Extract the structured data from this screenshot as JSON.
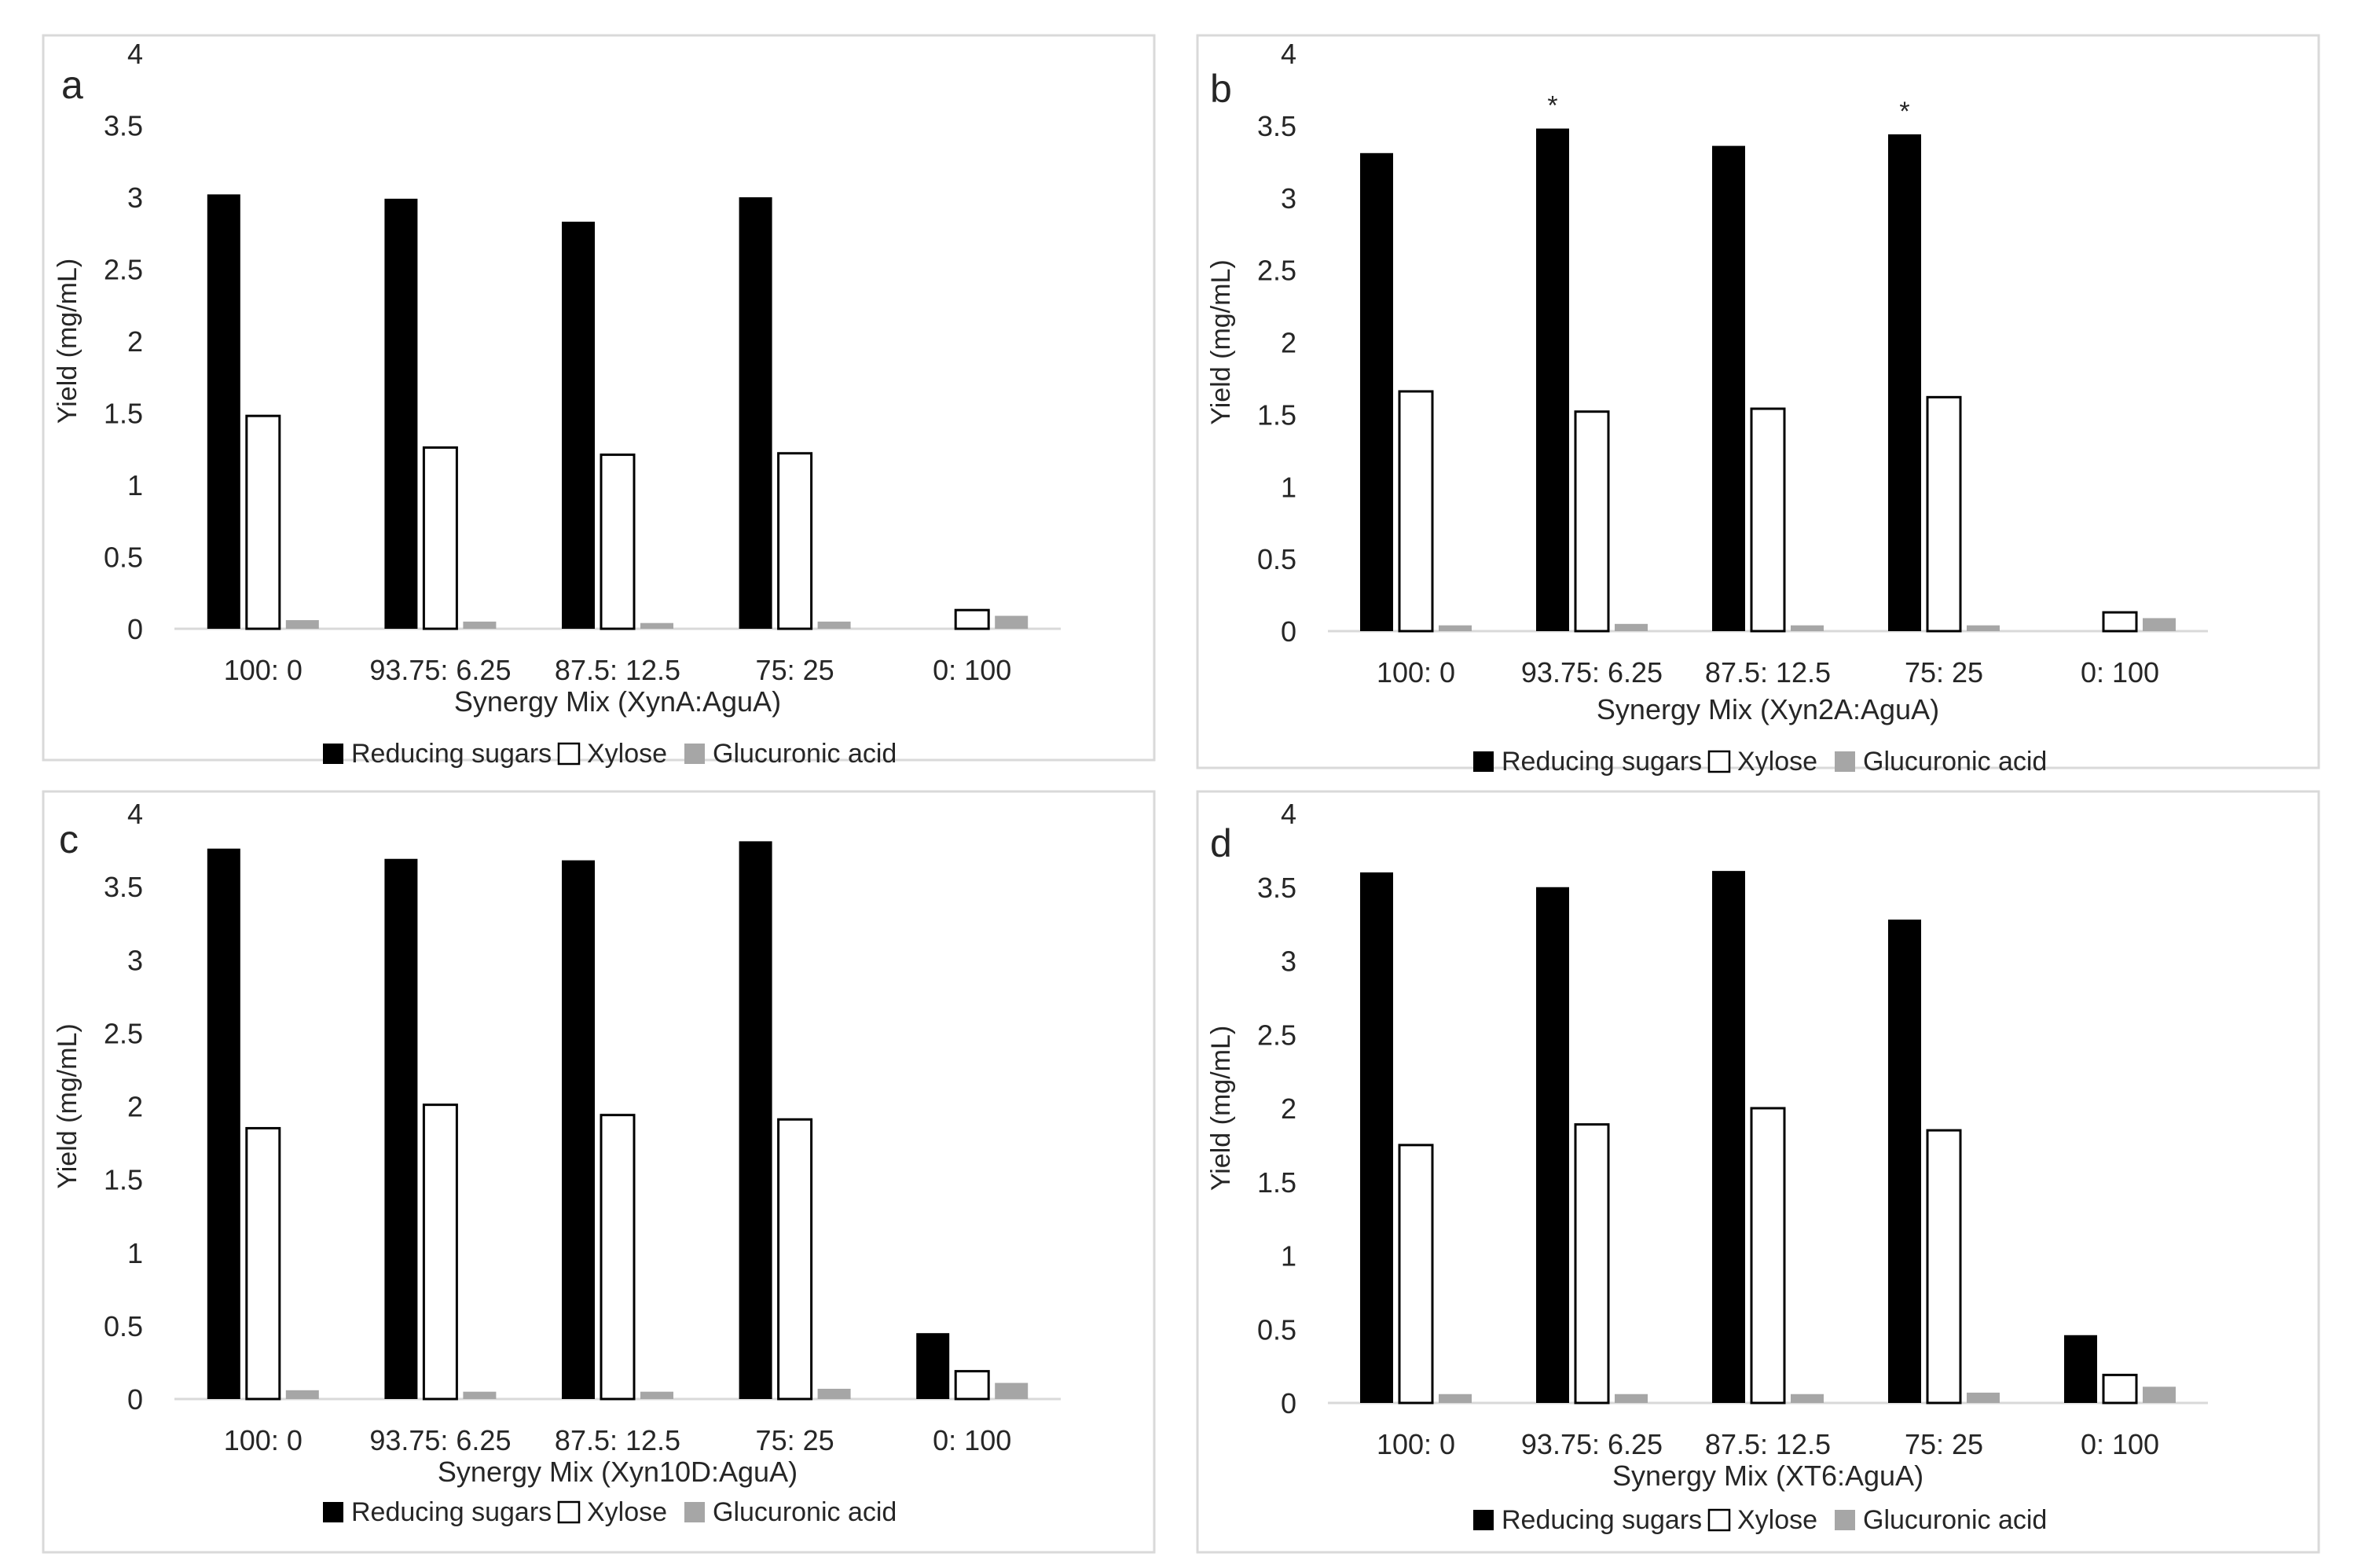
{
  "figure": {
    "legend_colors": {
      "reducing": "#000000",
      "xylose": "#ffffff",
      "glucuronic": "#a6a6a6"
    }
  },
  "chart_data": [
    {
      "panel": "a",
      "type": "bar",
      "title": "",
      "xlabel": "Synergy Mix (XynA:AguA)",
      "ylabel": "Yield (mg/mL)",
      "ylim": [
        0,
        4
      ],
      "yticks": [
        "0",
        "0.5",
        "1",
        "1.5",
        "2",
        "2.5",
        "3",
        "3.5",
        "4"
      ],
      "categories": [
        "100: 0",
        "93.75: 6.25",
        "87.5: 12.5",
        "75: 25",
        "0: 100"
      ],
      "series": [
        {
          "name": "Reducing sugars",
          "color": "#000000",
          "values": [
            3.02,
            2.99,
            2.83,
            3.0,
            0
          ]
        },
        {
          "name": "Xylose",
          "color": "#ffffff",
          "values": [
            1.48,
            1.26,
            1.21,
            1.22,
            0.13
          ]
        },
        {
          "name": "Glucuronic acid",
          "color": "#a6a6a6",
          "values": [
            0.06,
            0.05,
            0.04,
            0.05,
            0.09
          ]
        }
      ],
      "annotations": [],
      "legend": "bottom"
    },
    {
      "panel": "b",
      "type": "bar",
      "title": "",
      "xlabel": "Synergy Mix (Xyn2A:AguA)",
      "ylabel": "Yield (mg/mL)",
      "ylim": [
        0,
        4
      ],
      "yticks": [
        "0",
        "0.5",
        "1",
        "1.5",
        "2",
        "2.5",
        "3",
        "3.5",
        "4"
      ],
      "categories": [
        "100: 0",
        "93.75: 6.25",
        "87.5: 12.5",
        "75: 25",
        "0: 100"
      ],
      "series": [
        {
          "name": "Reducing sugars",
          "color": "#000000",
          "values": [
            3.31,
            3.48,
            3.36,
            3.44,
            0
          ]
        },
        {
          "name": "Xylose",
          "color": "#ffffff",
          "values": [
            1.66,
            1.52,
            1.54,
            1.62,
            0.13
          ]
        },
        {
          "name": "Glucuronic acid",
          "color": "#a6a6a6",
          "values": [
            0.04,
            0.05,
            0.04,
            0.04,
            0.09
          ]
        }
      ],
      "annotations": [
        {
          "category": 1,
          "text": "*"
        },
        {
          "category": 3,
          "text": "*"
        }
      ],
      "legend": "bottom"
    },
    {
      "panel": "c",
      "type": "bar",
      "title": "",
      "xlabel": "Synergy Mix (Xyn10D:AguA)",
      "ylabel": "Yield (mg/mL)",
      "ylim": [
        0,
        4
      ],
      "yticks": [
        "0",
        "0.5",
        "1",
        "1.5",
        "2",
        "2.5",
        "3",
        "3.5",
        "4"
      ],
      "categories": [
        "100: 0",
        "93.75: 6.25",
        "87.5: 12.5",
        "75: 25",
        "0: 100"
      ],
      "series": [
        {
          "name": "Reducing sugars",
          "color": "#000000",
          "values": [
            3.76,
            3.69,
            3.68,
            3.81,
            0.45
          ]
        },
        {
          "name": "Xylose",
          "color": "#ffffff",
          "values": [
            1.85,
            2.01,
            1.94,
            1.91,
            0.19
          ]
        },
        {
          "name": "Glucuronic acid",
          "color": "#a6a6a6",
          "values": [
            0.06,
            0.05,
            0.05,
            0.07,
            0.11
          ]
        }
      ],
      "annotations": [],
      "legend": "bottom"
    },
    {
      "panel": "d",
      "type": "bar",
      "title": "",
      "xlabel": "Synergy Mix (XT6:AguA)",
      "ylabel": "Yield (mg/mL)",
      "ylim": [
        0,
        4
      ],
      "yticks": [
        "0",
        "0.5",
        "1",
        "1.5",
        "2",
        "2.5",
        "3",
        "3.5",
        "4"
      ],
      "categories": [
        "100: 0",
        "93.75: 6.25",
        "87.5: 12.5",
        "75: 25",
        "0: 100"
      ],
      "series": [
        {
          "name": "Reducing sugars",
          "color": "#000000",
          "values": [
            3.6,
            3.5,
            3.61,
            3.28,
            0.46
          ]
        },
        {
          "name": "Xylose",
          "color": "#ffffff",
          "values": [
            1.75,
            1.89,
            2.0,
            1.85,
            0.19
          ]
        },
        {
          "name": "Glucuronic acid",
          "color": "#a6a6a6",
          "values": [
            0.06,
            0.06,
            0.06,
            0.07,
            0.11
          ]
        }
      ],
      "annotations": [],
      "legend": "bottom"
    }
  ]
}
